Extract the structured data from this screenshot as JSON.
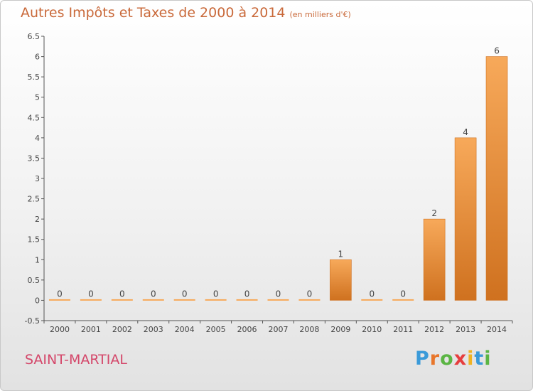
{
  "header": {
    "title": "Autres Impôts et Taxes de 2000 à 2014",
    "subtitle": "(en milliers d'€)"
  },
  "footer": {
    "commune": "SAINT-MARTIAL",
    "logo_text": "Proxiti",
    "logo_letter_colors": [
      "#3a9ad9",
      "#e8762b",
      "#5bb544",
      "#e63e3e",
      "#f0b323",
      "#3a9ad9",
      "#5bb544"
    ]
  },
  "colors": {
    "bar_light": "#f7a95a",
    "bar_dark": "#cf711f",
    "title": "#c9693a",
    "commune": "#d4476a",
    "axis": "#555555"
  },
  "chart_data": {
    "type": "bar",
    "title": "Autres Impôts et Taxes de 2000 à 2014",
    "subtitle": "(en milliers d'€)",
    "categories": [
      "2000",
      "2001",
      "2002",
      "2003",
      "2004",
      "2005",
      "2006",
      "2007",
      "2008",
      "2009",
      "2010",
      "2011",
      "2012",
      "2013",
      "2014"
    ],
    "values": [
      0,
      0,
      0,
      0,
      0,
      0,
      0,
      0,
      0,
      1,
      0,
      0,
      2,
      4,
      6
    ],
    "data_labels": [
      "0",
      "0",
      "0",
      "0",
      "0",
      "0",
      "0",
      "0",
      "0",
      "1",
      "0",
      "0",
      "2",
      "4",
      "6"
    ],
    "ylim": [
      -0.5,
      6.5
    ],
    "yticks": [
      "-0.5",
      "0",
      "0.5",
      "1",
      "1.5",
      "2",
      "2.5",
      "3",
      "3.5",
      "4",
      "4.5",
      "5",
      "5.5",
      "6",
      "6.5"
    ],
    "xlabel": "",
    "ylabel": "",
    "grid": false,
    "legend": "none"
  }
}
